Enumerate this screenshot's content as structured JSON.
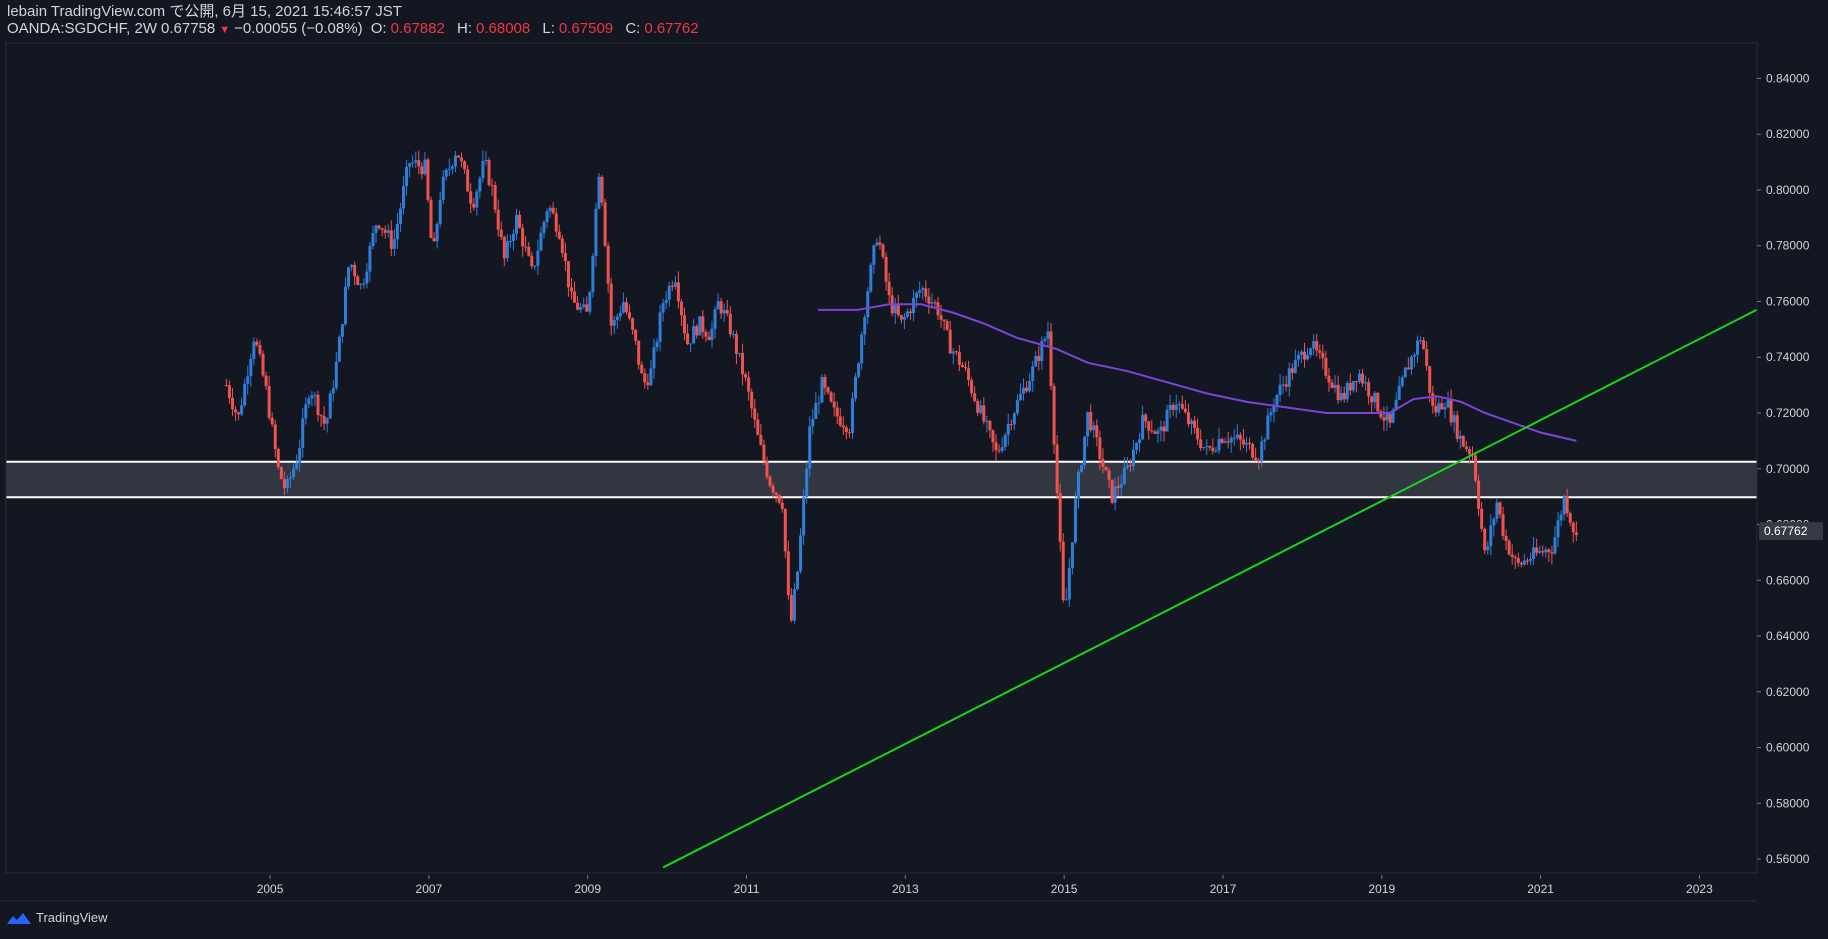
{
  "header": {
    "line1": "lebain TradingView.com で公開, 6月 15, 2021 15:46:57 JST",
    "symbol": "OANDA:SGDCHF, 2W",
    "last": "0.67758",
    "down_arrow": "▼",
    "change": "−0.00055 (−0.08%)",
    "o_label": "O:",
    "o_val": "0.67882",
    "h_label": "H:",
    "h_val": "0.68008",
    "l_label": "L:",
    "l_val": "0.67509",
    "c_label": "C:",
    "c_val": "0.67762"
  },
  "footer": {
    "brand": "TradingView"
  },
  "colors": {
    "background": "#131722",
    "up": "#2f7ed8",
    "down": "#ef5350",
    "ma": "#7b46d6",
    "trendline": "#19d519",
    "zone_fill": "#363a45",
    "zone_border": "#ffffff",
    "price_label_bg": "#363a45"
  },
  "chart_data": {
    "type": "candlestick",
    "symbol": "OANDA:SGDCHF",
    "interval": "2W",
    "ylim": [
      0.555,
      0.852
    ],
    "y_ticks": [
      0.56,
      0.58,
      0.6,
      0.62,
      0.64,
      0.66,
      0.68,
      0.7,
      0.72,
      0.74,
      0.76,
      0.78,
      0.8,
      0.82,
      0.84
    ],
    "y_tick_labels": [
      "0.56000",
      "0.58000",
      "0.60000",
      "0.62000",
      "0.64000",
      "0.66000",
      "0.68000",
      "0.70000",
      "0.72000",
      "0.74000",
      "0.76000",
      "0.78000",
      "0.80000",
      "0.82000",
      "0.84000"
    ],
    "xlim": [
      2001.7,
      2023.7
    ],
    "x_ticks": [
      2005,
      2007,
      2009,
      2011,
      2013,
      2015,
      2017,
      2019,
      2021,
      2023
    ],
    "x_tick_labels": [
      "2005",
      "2007",
      "2009",
      "2011",
      "2013",
      "2015",
      "2017",
      "2019",
      "2021",
      "2023"
    ],
    "last_price_label": "0.67762",
    "last_price": 0.67762,
    "close_path": [
      [
        2004.45,
        0.73
      ],
      [
        2004.6,
        0.718
      ],
      [
        2004.8,
        0.748
      ],
      [
        2004.95,
        0.728
      ],
      [
        2005.1,
        0.7
      ],
      [
        2005.2,
        0.692
      ],
      [
        2005.35,
        0.705
      ],
      [
        2005.5,
        0.73
      ],
      [
        2005.7,
        0.715
      ],
      [
        2005.85,
        0.74
      ],
      [
        2006.0,
        0.775
      ],
      [
        2006.15,
        0.765
      ],
      [
        2006.35,
        0.79
      ],
      [
        2006.55,
        0.78
      ],
      [
        2006.75,
        0.81
      ],
      [
        2006.95,
        0.808
      ],
      [
        2007.05,
        0.775
      ],
      [
        2007.15,
        0.8
      ],
      [
        2007.35,
        0.815
      ],
      [
        2007.55,
        0.795
      ],
      [
        2007.7,
        0.81
      ],
      [
        2007.8,
        0.8
      ],
      [
        2007.95,
        0.775
      ],
      [
        2008.1,
        0.79
      ],
      [
        2008.3,
        0.77
      ],
      [
        2008.5,
        0.795
      ],
      [
        2008.65,
        0.785
      ],
      [
        2008.8,
        0.76
      ],
      [
        2009.0,
        0.755
      ],
      [
        2009.15,
        0.81
      ],
      [
        2009.3,
        0.75
      ],
      [
        2009.45,
        0.76
      ],
      [
        2009.6,
        0.745
      ],
      [
        2009.7,
        0.73
      ],
      [
        2009.8,
        0.735
      ],
      [
        2009.95,
        0.76
      ],
      [
        2010.1,
        0.77
      ],
      [
        2010.25,
        0.745
      ],
      [
        2010.4,
        0.752
      ],
      [
        2010.55,
        0.748
      ],
      [
        2010.65,
        0.76
      ],
      [
        2010.8,
        0.75
      ],
      [
        2010.9,
        0.74
      ],
      [
        2011.0,
        0.73
      ],
      [
        2011.15,
        0.71
      ],
      [
        2011.3,
        0.695
      ],
      [
        2011.45,
        0.688
      ],
      [
        2011.55,
        0.642
      ],
      [
        2011.65,
        0.665
      ],
      [
        2011.8,
        0.715
      ],
      [
        2011.95,
        0.73
      ],
      [
        2012.1,
        0.72
      ],
      [
        2012.3,
        0.715
      ],
      [
        2012.5,
        0.76
      ],
      [
        2012.65,
        0.785
      ],
      [
        2012.8,
        0.76
      ],
      [
        2012.95,
        0.752
      ],
      [
        2013.2,
        0.765
      ],
      [
        2013.4,
        0.758
      ],
      [
        2013.55,
        0.745
      ],
      [
        2013.75,
        0.735
      ],
      [
        2013.95,
        0.72
      ],
      [
        2014.15,
        0.705
      ],
      [
        2014.35,
        0.72
      ],
      [
        2014.6,
        0.735
      ],
      [
        2014.8,
        0.75
      ],
      [
        2015.0,
        0.645
      ],
      [
        2015.15,
        0.69
      ],
      [
        2015.3,
        0.72
      ],
      [
        2015.45,
        0.705
      ],
      [
        2015.6,
        0.69
      ],
      [
        2015.8,
        0.7
      ],
      [
        2016.0,
        0.718
      ],
      [
        2016.2,
        0.712
      ],
      [
        2016.4,
        0.725
      ],
      [
        2016.6,
        0.715
      ],
      [
        2016.8,
        0.706
      ],
      [
        2017.0,
        0.712
      ],
      [
        2017.2,
        0.71
      ],
      [
        2017.45,
        0.705
      ],
      [
        2017.65,
        0.725
      ],
      [
        2017.85,
        0.735
      ],
      [
        2018.1,
        0.745
      ],
      [
        2018.3,
        0.735
      ],
      [
        2018.5,
        0.725
      ],
      [
        2018.7,
        0.735
      ],
      [
        2018.9,
        0.725
      ],
      [
        2019.1,
        0.715
      ],
      [
        2019.3,
        0.735
      ],
      [
        2019.5,
        0.748
      ],
      [
        2019.65,
        0.72
      ],
      [
        2019.8,
        0.725
      ],
      [
        2020.0,
        0.71
      ],
      [
        2020.15,
        0.705
      ],
      [
        2020.3,
        0.668
      ],
      [
        2020.45,
        0.688
      ],
      [
        2020.55,
        0.675
      ],
      [
        2020.7,
        0.665
      ],
      [
        2020.85,
        0.668
      ],
      [
        2021.0,
        0.67
      ],
      [
        2021.15,
        0.672
      ],
      [
        2021.3,
        0.69
      ],
      [
        2021.45,
        0.675
      ]
    ],
    "moving_average": {
      "name": "MA",
      "points": [
        [
          2011.9,
          0.757
        ],
        [
          2012.4,
          0.757
        ],
        [
          2012.8,
          0.759
        ],
        [
          2013.2,
          0.759
        ],
        [
          2013.6,
          0.756
        ],
        [
          2014.0,
          0.752
        ],
        [
          2014.4,
          0.747
        ],
        [
          2014.9,
          0.743
        ],
        [
          2015.3,
          0.738
        ],
        [
          2015.8,
          0.735
        ],
        [
          2016.3,
          0.731
        ],
        [
          2016.8,
          0.727
        ],
        [
          2017.3,
          0.724
        ],
        [
          2017.8,
          0.722
        ],
        [
          2018.3,
          0.72
        ],
        [
          2018.8,
          0.72
        ],
        [
          2019.1,
          0.72
        ],
        [
          2019.4,
          0.725
        ],
        [
          2019.7,
          0.726
        ],
        [
          2020.0,
          0.724
        ],
        [
          2020.3,
          0.72
        ],
        [
          2020.7,
          0.716
        ],
        [
          2021.0,
          0.713
        ],
        [
          2021.45,
          0.71
        ]
      ]
    },
    "trendline": {
      "from": [
        2009.95,
        0.557
      ],
      "to": [
        2023.72,
        0.757
      ]
    },
    "zone": {
      "top": 0.7025,
      "bottom": 0.6898
    }
  }
}
